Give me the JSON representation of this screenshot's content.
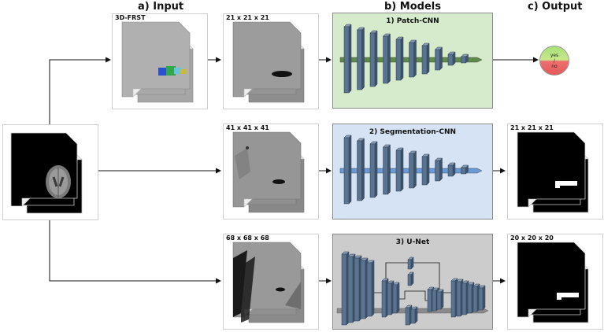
{
  "headers": {
    "input": "a) Input",
    "models": "b) Models",
    "output": "c) Output"
  },
  "input": {
    "frst_label": "3D-FRST",
    "patch1_label": "21 x 21 x 21",
    "patch2_label": "41 x 41 x 41",
    "patch3_label": "68 x 68 x 68"
  },
  "models": {
    "m1_title": "1) Patch-CNN",
    "m2_title": "2) Segmentation-CNN",
    "m3_title": "3) U-Net",
    "colors": {
      "m1_bg": "#d6ebcc",
      "m2_bg": "#d5e3f5",
      "m3_bg": "#cccccc",
      "bars": "#5a7390",
      "m1_line": "#5e8a4a",
      "m2_line": "#6a9ad6",
      "m3_line": "#8a8a8a"
    }
  },
  "output": {
    "yes": "yes",
    "slash": "/",
    "no": "no",
    "seg1_label": "21 x 21 x 21",
    "seg2_label": "20 x 20 x 20"
  }
}
